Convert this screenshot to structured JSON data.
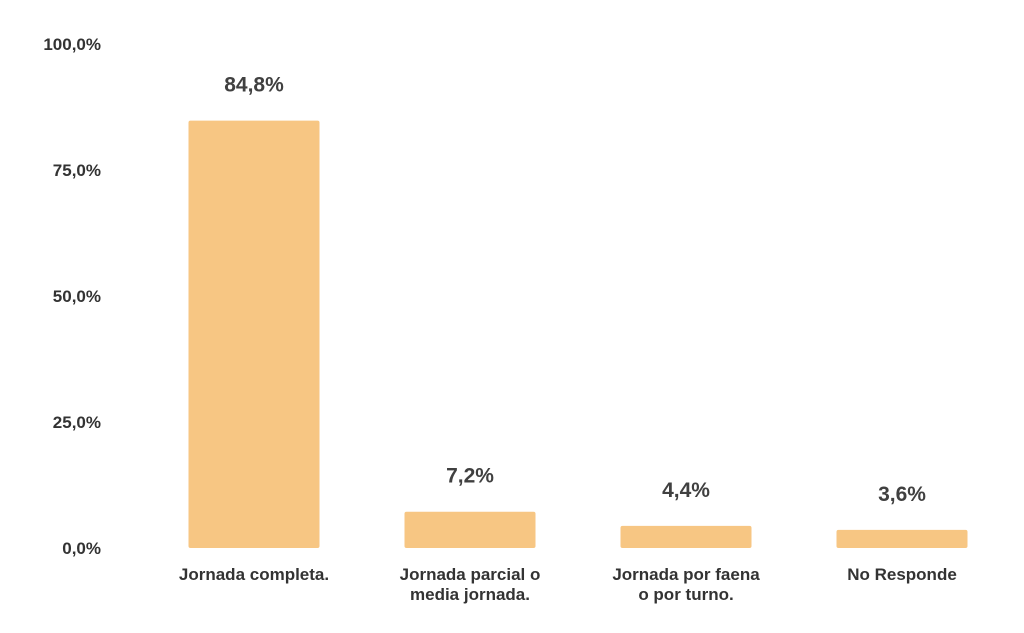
{
  "chart_data": {
    "type": "bar",
    "categories": [
      [
        "Jornada completa."
      ],
      [
        "Jornada parcial o",
        "media jornada."
      ],
      [
        "Jornada por faena",
        "o por turno."
      ],
      [
        "No Responde"
      ]
    ],
    "values": [
      84.8,
      7.2,
      4.4,
      3.6
    ],
    "data_labels": [
      "84,8%",
      "7,2%",
      "4,4%",
      "3,6%"
    ],
    "ylim": [
      0,
      100
    ],
    "yticks": [
      0,
      25,
      50,
      75,
      100
    ],
    "ytick_labels": [
      "0,0%",
      "25,0%",
      "50,0%",
      "75,0%",
      "100,0%"
    ],
    "grid": false,
    "legend": "none",
    "colors": {
      "bar": "#F7C683",
      "text": "#333333"
    }
  }
}
